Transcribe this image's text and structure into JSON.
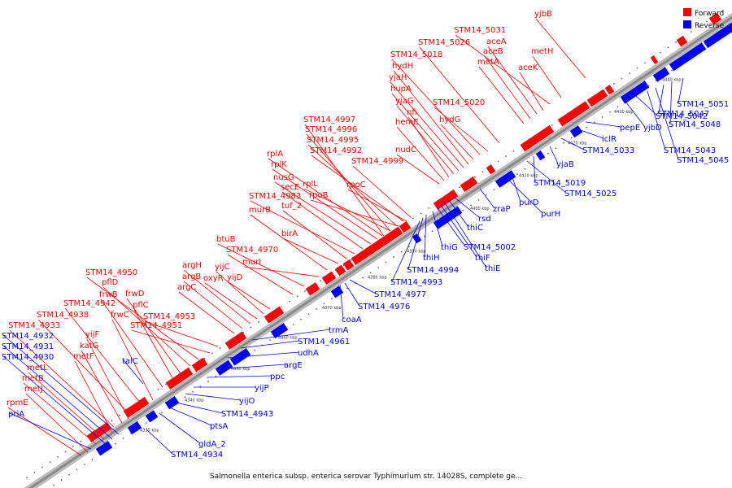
{
  "caption": "Salmonella enterica subsp. enterica serovar Typhimurium str. 14028S, complete ge...",
  "legend": [
    {
      "label": "Forward",
      "color": "#ff0000"
    },
    {
      "label": "Reverse",
      "color": "#0000ff"
    }
  ],
  "colors": {
    "forward": "#ff0000",
    "reverse": "#0000ff",
    "backbone": "#888888"
  },
  "ticks": [
    "4330 kbp",
    "4340 kbp",
    "4350 kbp",
    "4360 kbp",
    "4370 kbp",
    "4380 kbp",
    "4390 kbp",
    "4400 kbp",
    "4410 kbp",
    "4420 kbp",
    "4430 kbp",
    "4440 kbp"
  ],
  "forward_labels": [
    "rpmE",
    "metJ",
    "metB",
    "metL",
    "metF",
    "katG",
    "yijF",
    "STM14_4933",
    "STM14_4938",
    "STM14_4942",
    "frwC",
    "frwB",
    "pflC",
    "frwD",
    "pflD",
    "STM14_4950",
    "STM14_4951",
    "STM14_4953",
    "argC",
    "argB",
    "argH",
    "oxyR",
    "yijC",
    "yijD",
    "STM14_4970",
    "btuB",
    "murI",
    "murB",
    "birA",
    "tuf_2",
    "STM14_4983",
    "secE",
    "nusG",
    "rplK",
    "rplA",
    "rplL",
    "rpoB",
    "rpoC",
    "STM14_4992",
    "STM14_4995",
    "STM14_4996",
    "STM14_4997",
    "STM14_4999",
    "nudC",
    "hemE",
    "nfi",
    "yjaG",
    "hupA",
    "yjaH",
    "hydH",
    "hydG",
    "STM14_5018",
    "STM14_5020",
    "STM14_5026",
    "metA",
    "aceB",
    "aceA",
    "aceK",
    "STM14_5031",
    "metH",
    "yjbB"
  ],
  "reverse_labels": [
    "priA",
    "STM14_4930",
    "STM14_4931",
    "STM14_4932",
    "talC",
    "STM14_4934",
    "gldA_2",
    "ptsA",
    "STM14_4943",
    "yijO",
    "yijP",
    "ppc",
    "argE",
    "udhA",
    "STM14_4961",
    "trmA",
    "coaA",
    "STM14_4976",
    "STM14_4977",
    "STM14_4993",
    "STM14_4994",
    "thiH",
    "thiG",
    "STM14_5002",
    "thiF",
    "thiE",
    "thiC",
    "rsd",
    "zraP",
    "purH",
    "purD",
    "STM14_5025",
    "STM14_5019",
    "yjaB",
    "STM14_5033",
    "iclR",
    "pepE",
    "yjbD",
    "STM14_5042",
    "STM14_5043",
    "STM14_5045",
    "STM14_5047",
    "STM14_5048",
    "STM14_5051"
  ]
}
